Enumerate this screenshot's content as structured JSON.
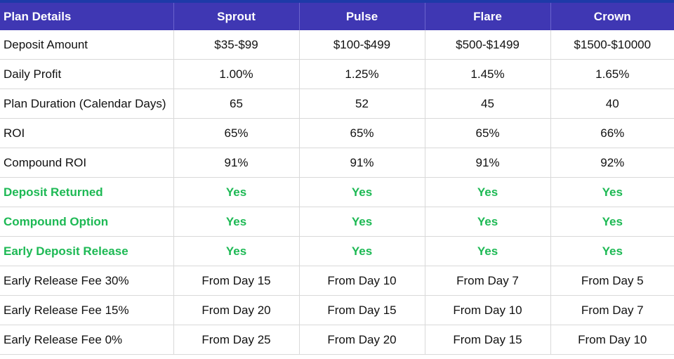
{
  "header": {
    "label": "Plan Details",
    "plans": [
      "Sprout",
      "Pulse",
      "Flare",
      "Crown"
    ]
  },
  "rows": [
    {
      "label": "Deposit Amount",
      "values": [
        "$35-$99",
        "$100-$499",
        "$500-$1499",
        "$1500-$10000"
      ]
    },
    {
      "label": "Daily Profit",
      "values": [
        "1.00%",
        "1.25%",
        "1.45%",
        "1.65%"
      ]
    },
    {
      "label": "Plan Duration (Calendar Days)",
      "values": [
        "65",
        "52",
        "45",
        "40"
      ]
    },
    {
      "label": "ROI",
      "values": [
        "65%",
        "65%",
        "65%",
        "66%"
      ]
    },
    {
      "label": "Compound ROI",
      "values": [
        "91%",
        "91%",
        "91%",
        "92%"
      ]
    },
    {
      "label": "Deposit Returned",
      "values": [
        "Yes",
        "Yes",
        "Yes",
        "Yes"
      ]
    },
    {
      "label": "Compound Option",
      "values": [
        "Yes",
        "Yes",
        "Yes",
        "Yes"
      ]
    },
    {
      "label": "Early Deposit Release",
      "values": [
        "Yes",
        "Yes",
        "Yes",
        "Yes"
      ]
    },
    {
      "label": "Early Release Fee 30%",
      "values": [
        "From Day 15",
        "From Day 10",
        "From Day 7",
        "From Day 5"
      ]
    },
    {
      "label": "Early Release Fee 15%",
      "values": [
        "From Day 20",
        "From Day 15",
        "From Day 10",
        "From Day 7"
      ]
    },
    {
      "label": "Early Release Fee 0%",
      "values": [
        "From Day 25",
        "From Day 20",
        "From Day 15",
        "From Day 10"
      ]
    }
  ],
  "colors": {
    "header_background": "#3f37b3",
    "header_text": "#ffffff",
    "highlight_text": "#1db954",
    "body_text": "#111111"
  }
}
